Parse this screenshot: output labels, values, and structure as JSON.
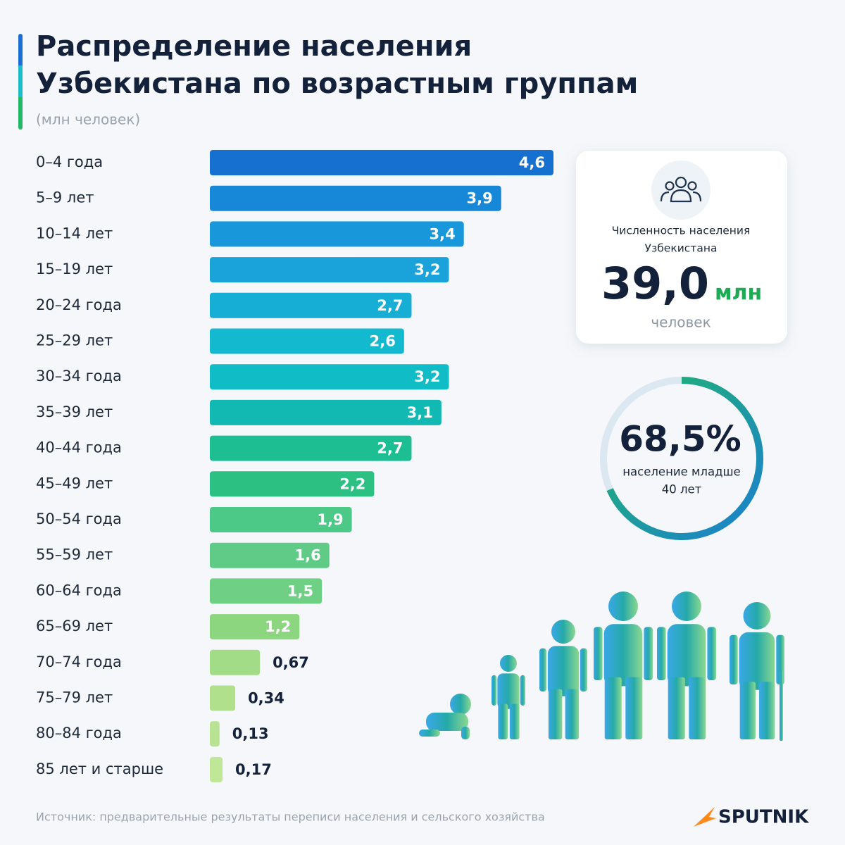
{
  "header": {
    "title_lines": [
      "Распределение населения",
      "Узбекистана по возрастным группам"
    ],
    "subtitle": "(млн человек)"
  },
  "chart_data": {
    "type": "bar",
    "orientation": "horizontal",
    "categories": [
      "0–4 года",
      "5–9 лет",
      "10–14 лет",
      "15–19 лет",
      "20–24 года",
      "25–29 лет",
      "30–34 года",
      "35–39 лет",
      "40–44 года",
      "45–49 лет",
      "50–54 года",
      "55–59 лет",
      "60–64 года",
      "65–69 лет",
      "70–74 года",
      "75–79 лет",
      "80–84 года",
      "85 лет и старше"
    ],
    "values": [
      4.6,
      3.9,
      3.4,
      3.2,
      2.7,
      2.6,
      3.2,
      3.1,
      2.7,
      2.2,
      1.9,
      1.6,
      1.5,
      1.2,
      0.67,
      0.34,
      0.13,
      0.17
    ],
    "value_labels": [
      "4,6",
      "3,9",
      "3,4",
      "3,2",
      "2,7",
      "2,6",
      "3,2",
      "3,1",
      "2,7",
      "2,2",
      "1,9",
      "1,6",
      "1,5",
      "1,2",
      "0,67",
      "0,34",
      "0,13",
      "0,17"
    ],
    "colors": [
      "#1670d0",
      "#1787d8",
      "#1898db",
      "#1aa3da",
      "#17aed6",
      "#12b9cf",
      "#10bcc6",
      "#12b8b2",
      "#1dbe92",
      "#2cc083",
      "#4cc887",
      "#5fcb86",
      "#6fcf84",
      "#8cd680",
      "#a2dc86",
      "#b0e08c",
      "#b8e392",
      "#c0e697"
    ]
  },
  "stat_card": {
    "caption_lines": [
      "Численность населения",
      "Узбекистана"
    ],
    "value": "39,0",
    "unit": "млн",
    "note": "человек"
  },
  "ring": {
    "value": 68.5,
    "label": "68,5%",
    "caption_lines": [
      "население младше",
      "40 лет"
    ]
  },
  "footer": {
    "source": "Источник: предварительные результаты переписи населения и сельского хозяйства",
    "logo": "SPUTNIK"
  }
}
